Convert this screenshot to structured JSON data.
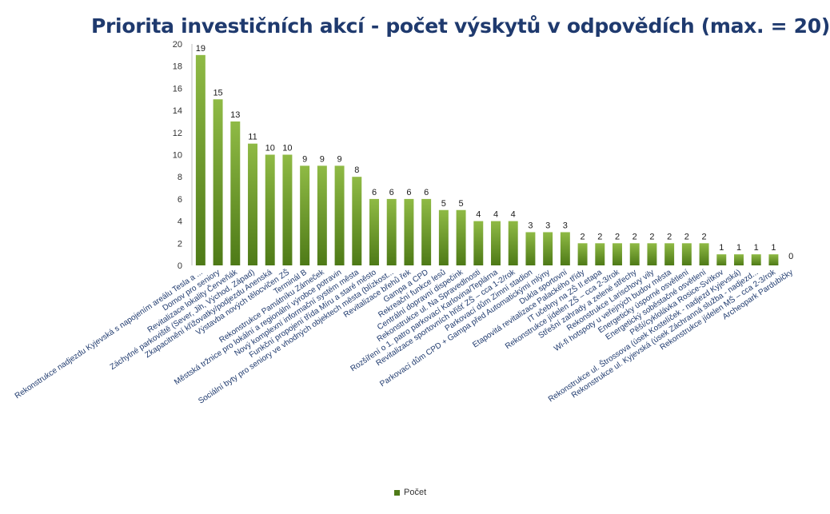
{
  "chart_data": {
    "type": "bar",
    "title": "Priorita investičních akcí - počet výskytů v odpovědích (max. = 20)",
    "categories": [
      "Rekonstrukce nadjezdu Kyjevská s napojením areálu Tesla a ...",
      "Domov pro seniory",
      "Revitalizace lokality Červeňák",
      "Záchytné parkoviště (Sever, Jih, Východ, Západ)",
      "Zkapacitnění křižovatky/podjezdu  Anenská",
      "Výstavba nových tělocvičen ZŠ",
      "Terminál B",
      "Rekonstrukce Památníku Zámeček",
      "Městská tržnice pro lokální a regionální výrobce potravin",
      "Nový komplexní informační systém města",
      "Funkční propojení třída Míru a staré město",
      "Sociální byty pro seniory ve vhodných objektech města (blízkost...",
      "Revitalizace břehů řek",
      "Gampa a CPD",
      "Rekreační funkce lesů",
      "Centrální dopravní dispečink",
      "Rekonstrukce ul. Na Spravedlnosti",
      "Rozšíření o 1. patro parkovací Karlovina/Teplárna",
      "Revitalizace sportovních hřišť ZŠ – cca 1-2/rok",
      "Parkovací dům Zimní stadion",
      "Parkovací dům CPD + Gampa před Automatickými  mlýny",
      "Dukla sportovní",
      "Etapovitá revitalizace Palackého třídy",
      "IT učebny na ZŠ II.etapa",
      "Rekonstrukce jídelen ZŠ – cca 2-3/rok",
      "Střešní zahrady a zelené střechy",
      "Rekonstrukce Larischovy vily",
      "Wi-fi hotspoty  u veřejných budov města",
      "Energeticky úsporné osvětlení",
      "Energetický soběstačné osvětlení",
      "Pěší/cyklolávka Rosice-Svítkov",
      "Rekonstrukce ul. Štrossova (úsek Kostelíček - nadjezd Kyjevská)",
      "Rekonstrukce ul. Kyjevská (úsek Záchranná služba - nadjezd...",
      "Rekonstrukce jídelen MŠ – cca 2-3/rok",
      "Archeopark Pardubičky"
    ],
    "values": [
      19,
      15,
      13,
      11,
      10,
      10,
      9,
      9,
      9,
      8,
      6,
      6,
      6,
      6,
      5,
      5,
      4,
      4,
      4,
      3,
      3,
      3,
      2,
      2,
      2,
      2,
      2,
      2,
      2,
      2,
      1,
      1,
      1,
      1,
      0
    ],
    "series_name": "Počet",
    "ylim": [
      0,
      20
    ],
    "yticks": [
      0,
      2,
      4,
      6,
      8,
      10,
      12,
      14,
      16,
      18,
      20
    ],
    "grid": false,
    "legend_position": "bottom",
    "colors": {
      "bar_top": "#8fba45",
      "bar_bottom": "#4e7a17",
      "title": "#1f3a6e"
    }
  }
}
